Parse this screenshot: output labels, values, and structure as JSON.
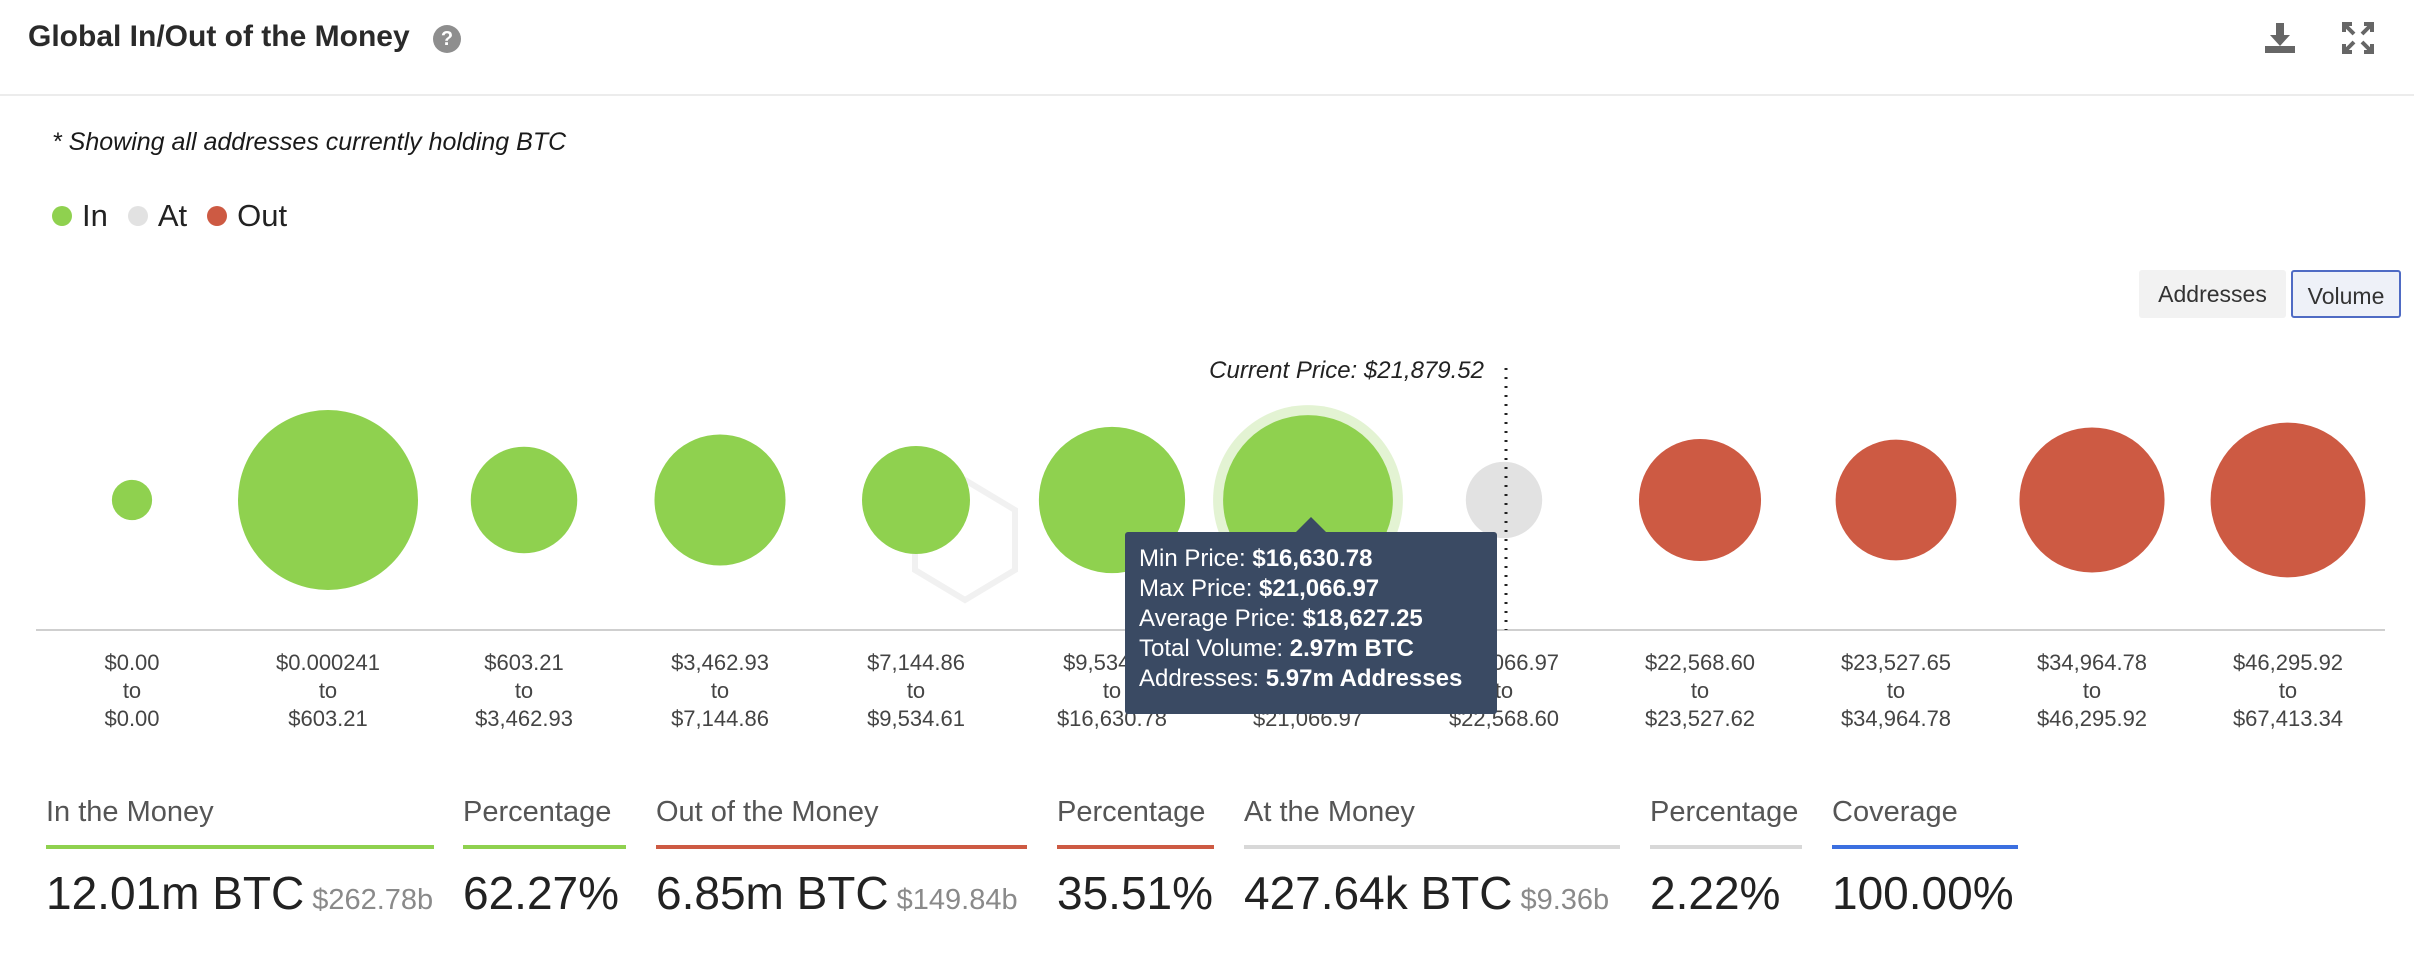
{
  "header": {
    "title": "Global In/Out of the Money",
    "help_icon": "?"
  },
  "note": "* Showing all addresses currently holding BTC",
  "legend": [
    {
      "label": "In",
      "color": "#8fd14f"
    },
    {
      "label": "At",
      "color": "#e2e2e2"
    },
    {
      "label": "Out",
      "color": "#cd5a43"
    }
  ],
  "toggles": {
    "addresses": "Addresses",
    "volume": "Volume",
    "active": "volume"
  },
  "chart_data": {
    "type": "bubble",
    "title": "Global In/Out of the Money",
    "current_price_label": "Current Price: $21,879.52",
    "current_price_position": {
      "after_bucket": 7
    },
    "buckets": [
      {
        "from": "$0.00",
        "to": "$0.00",
        "status": "in",
        "volume_rel": 0.05
      },
      {
        "from": "$0.000241",
        "to": "$603.21",
        "status": "in",
        "volume_rel": 1.0
      },
      {
        "from": "$603.21",
        "to": "$3,462.93",
        "status": "in",
        "volume_rel": 0.35
      },
      {
        "from": "$3,462.93",
        "to": "$7,144.86",
        "status": "in",
        "volume_rel": 0.53
      },
      {
        "from": "$7,144.86",
        "to": "$9,534.61",
        "status": "in",
        "volume_rel": 0.36
      },
      {
        "from": "$9,534.61",
        "to": "$16,630.78",
        "status": "in",
        "volume_rel": 0.66
      },
      {
        "from": "$16,630.78",
        "to": "$21,066.97",
        "status": "in",
        "volume_rel": 0.89
      },
      {
        "from": "$21,066.97",
        "to": "$22,568.60",
        "status": "at",
        "volume_rel": 0.18
      },
      {
        "from": "$22,568.60",
        "to": "$23,527.62",
        "status": "out",
        "volume_rel": 0.46
      },
      {
        "from": "$23,527.65",
        "to": "$34,964.78",
        "status": "out",
        "volume_rel": 0.45
      },
      {
        "from": "$34,964.78",
        "to": "$46,295.92",
        "status": "out",
        "volume_rel": 0.65
      },
      {
        "from": "$46,295.92",
        "to": "$67,413.34",
        "status": "out",
        "volume_rel": 0.74
      }
    ],
    "highlighted_bucket": 6,
    "colors": {
      "in": "#8fd14f",
      "at": "#e2e2e2",
      "out": "#cd5a43"
    }
  },
  "tooltip": {
    "min_price_label": "Min Price:",
    "min_price": "$16,630.78",
    "max_price_label": "Max Price:",
    "max_price": "$21,066.97",
    "avg_price_label": "Average Price:",
    "avg_price": "$18,627.25",
    "total_volume_label": "Total Volume:",
    "total_volume": "2.97m BTC",
    "addresses_label": "Addresses:",
    "addresses": "5.97m Addresses"
  },
  "stats": {
    "in_money": {
      "label": "In the Money",
      "value": "12.01m BTC",
      "sub": "$262.78b",
      "color": "#8fd14f"
    },
    "in_pct": {
      "label": "Percentage",
      "value": "62.27%",
      "color": "#8fd14f"
    },
    "out_money": {
      "label": "Out of the Money",
      "value": "6.85m BTC",
      "sub": "$149.84b",
      "color": "#cd5a43"
    },
    "out_pct": {
      "label": "Percentage",
      "value": "35.51%",
      "color": "#cd5a43"
    },
    "at_money": {
      "label": "At the Money",
      "value": "427.64k BTC",
      "sub": "$9.36b",
      "color": "#d8d8d8"
    },
    "at_pct": {
      "label": "Percentage",
      "value": "2.22%",
      "color": "#d8d8d8"
    },
    "coverage": {
      "label": "Coverage",
      "value": "100.00%",
      "color": "#3b6fe0"
    }
  }
}
